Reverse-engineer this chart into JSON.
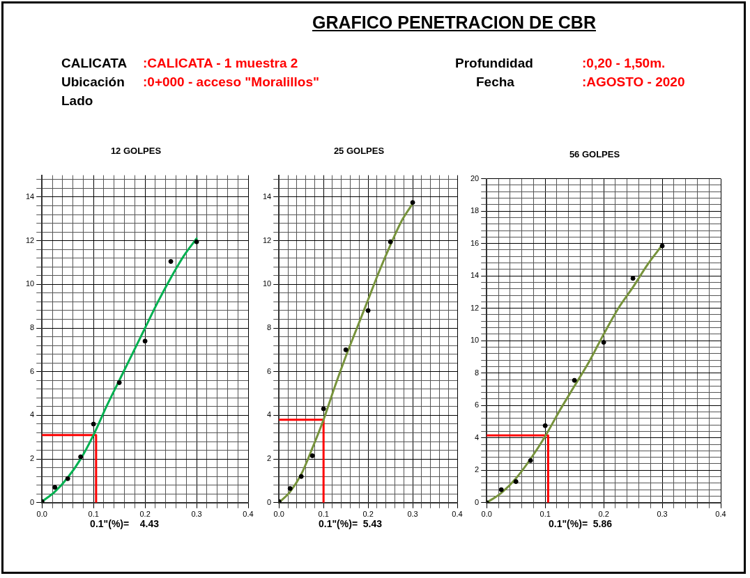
{
  "chart_data": [
    {
      "type": "other",
      "title": "GRAFICO PENETRACION DE CBR",
      "annotations": [
        "CALICATA",
        ":CALICATA - 1 muestra 2",
        "Ubicación",
        ":0+000 - acceso \"Moralillos\"",
        "Lado",
        "Profundidad",
        ":0,20 - 1,50m.",
        "Fecha",
        ":AGOSTO - 2020"
      ]
    },
    {
      "type": "scatter",
      "title": "12 GOLPES",
      "grid": true,
      "xlim": [
        0,
        0.4
      ],
      "ylim": [
        0,
        15
      ],
      "xticks": [
        {
          "value": 0,
          "label": "0.0"
        },
        {
          "value": 0.02,
          "label": null
        },
        {
          "value": 0.04,
          "label": null
        },
        {
          "value": 0.06,
          "label": null
        },
        {
          "value": 0.08,
          "label": null
        },
        0.1,
        {
          "value": 0.12,
          "label": null
        },
        {
          "value": 0.14,
          "label": null
        },
        {
          "value": 0.16,
          "label": null
        },
        {
          "value": 0.18,
          "label": null
        },
        0.2,
        {
          "value": 0.22,
          "label": null
        },
        {
          "value": 0.24,
          "label": null
        },
        {
          "value": 0.26,
          "label": null
        },
        {
          "value": 0.28,
          "label": null
        },
        0.3,
        {
          "value": 0.32,
          "label": null
        },
        {
          "value": 0.34,
          "label": null
        },
        {
          "value": 0.36,
          "label": null
        },
        {
          "value": 0.38,
          "label": null
        },
        0.4
      ],
      "yticks": [
        0,
        {
          "value": 0.4,
          "label": null
        },
        {
          "value": 0.8,
          "label": null
        },
        {
          "value": 1.2,
          "label": null
        },
        {
          "value": 1.6,
          "label": null
        },
        2,
        {
          "value": 2.4,
          "label": null
        },
        {
          "value": 2.8,
          "label": null
        },
        {
          "value": 3.2,
          "label": null
        },
        {
          "value": 3.6,
          "label": null
        },
        4,
        {
          "value": 4.4,
          "label": null
        },
        {
          "value": 4.8,
          "label": null
        },
        {
          "value": 5.2,
          "label": null
        },
        {
          "value": 5.6,
          "label": null
        },
        6,
        {
          "value": 6.4,
          "label": null
        },
        {
          "value": 6.8,
          "label": null
        },
        {
          "value": 7.2,
          "label": null
        },
        {
          "value": 7.6,
          "label": null
        },
        8,
        {
          "value": 8.4,
          "label": null
        },
        {
          "value": 8.8,
          "label": null
        },
        {
          "value": 9.2,
          "label": null
        },
        {
          "value": 9.6,
          "label": null
        },
        10,
        {
          "value": 10.4,
          "label": null
        },
        {
          "value": 10.8,
          "label": null
        },
        {
          "value": 11.2,
          "label": null
        },
        {
          "value": 11.6,
          "label": null
        },
        12,
        {
          "value": 12.4,
          "label": null
        },
        {
          "value": 12.8,
          "label": null
        },
        {
          "value": 13.2,
          "label": null
        },
        {
          "value": 13.6,
          "label": null
        },
        14,
        {
          "value": 14.4,
          "label": null
        },
        {
          "value": 14.8,
          "label": null
        }
      ],
      "series": [
        {
          "type": "scatter",
          "marker": "circle",
          "color": "#000000",
          "x": [
            0,
            0.025,
            0.05,
            0.075,
            0.1,
            0.15,
            0.2,
            0.25,
            0.3
          ],
          "values": [
            0.05,
            0.7,
            1.1,
            2.1,
            3.6,
            5.5,
            7.4,
            11.05,
            11.95
          ]
        },
        {
          "type": "line",
          "color": "#00b050",
          "x": [
            0,
            0.025,
            0.05,
            0.075,
            0.1,
            0.125,
            0.15,
            0.175,
            0.2,
            0.225,
            0.25,
            0.275,
            0.3
          ],
          "values": [
            0.05,
            0.5,
            1.15,
            2.0,
            3.1,
            4.4,
            5.6,
            6.8,
            8.0,
            9.2,
            10.3,
            11.3,
            12.1
          ]
        },
        {
          "type": "line",
          "color": "#ff0000",
          "x": [
            0,
            0.105,
            0.105
          ],
          "values": [
            3.1,
            3.1,
            0
          ]
        }
      ],
      "annotations": [
        "0.1\"(%)=    4.43"
      ]
    },
    {
      "type": "scatter",
      "title": "25 GOLPES",
      "grid": true,
      "xlim": [
        0,
        0.4
      ],
      "ylim": [
        0,
        15
      ],
      "xticks": [
        {
          "value": 0,
          "label": "0.0"
        },
        {
          "value": 0.02,
          "label": null
        },
        {
          "value": 0.04,
          "label": null
        },
        {
          "value": 0.06,
          "label": null
        },
        {
          "value": 0.08,
          "label": null
        },
        0.1,
        {
          "value": 0.12,
          "label": null
        },
        {
          "value": 0.14,
          "label": null
        },
        {
          "value": 0.16,
          "label": null
        },
        {
          "value": 0.18,
          "label": null
        },
        0.2,
        {
          "value": 0.22,
          "label": null
        },
        {
          "value": 0.24,
          "label": null
        },
        {
          "value": 0.26,
          "label": null
        },
        {
          "value": 0.28,
          "label": null
        },
        0.3,
        {
          "value": 0.32,
          "label": null
        },
        {
          "value": 0.34,
          "label": null
        },
        {
          "value": 0.36,
          "label": null
        },
        {
          "value": 0.38,
          "label": null
        },
        0.4
      ],
      "yticks": [
        0,
        {
          "value": 0.4,
          "label": null
        },
        {
          "value": 0.8,
          "label": null
        },
        {
          "value": 1.2,
          "label": null
        },
        {
          "value": 1.6,
          "label": null
        },
        2,
        {
          "value": 2.4,
          "label": null
        },
        {
          "value": 2.8,
          "label": null
        },
        {
          "value": 3.2,
          "label": null
        },
        {
          "value": 3.6,
          "label": null
        },
        4,
        {
          "value": 4.4,
          "label": null
        },
        {
          "value": 4.8,
          "label": null
        },
        {
          "value": 5.2,
          "label": null
        },
        {
          "value": 5.6,
          "label": null
        },
        6,
        {
          "value": 6.4,
          "label": null
        },
        {
          "value": 6.8,
          "label": null
        },
        {
          "value": 7.2,
          "label": null
        },
        {
          "value": 7.6,
          "label": null
        },
        8,
        {
          "value": 8.4,
          "label": null
        },
        {
          "value": 8.8,
          "label": null
        },
        {
          "value": 9.2,
          "label": null
        },
        {
          "value": 9.6,
          "label": null
        },
        10,
        {
          "value": 10.4,
          "label": null
        },
        {
          "value": 10.8,
          "label": null
        },
        {
          "value": 11.2,
          "label": null
        },
        {
          "value": 11.6,
          "label": null
        },
        12,
        {
          "value": 12.4,
          "label": null
        },
        {
          "value": 12.8,
          "label": null
        },
        {
          "value": 13.2,
          "label": null
        },
        {
          "value": 13.6,
          "label": null
        },
        14,
        {
          "value": 14.4,
          "label": null
        },
        {
          "value": 14.8,
          "label": null
        }
      ],
      "series": [
        {
          "type": "scatter",
          "marker": "circle",
          "color": "#000000",
          "x": [
            0,
            0.025,
            0.05,
            0.075,
            0.1,
            0.15,
            0.2,
            0.25,
            0.3
          ],
          "values": [
            0.05,
            0.65,
            1.2,
            2.15,
            4.3,
            7.0,
            8.8,
            11.95,
            13.75
          ]
        },
        {
          "type": "line",
          "color": "#77933c",
          "x": [
            0,
            0.025,
            0.05,
            0.075,
            0.1,
            0.125,
            0.15,
            0.175,
            0.2,
            0.225,
            0.25,
            0.275,
            0.3
          ],
          "values": [
            0,
            0.5,
            1.3,
            2.5,
            3.8,
            5.3,
            6.7,
            8.0,
            9.3,
            10.6,
            11.8,
            12.9,
            13.7
          ]
        },
        {
          "type": "line",
          "color": "#ff0000",
          "x": [
            0,
            0.1,
            0.1
          ],
          "values": [
            3.8,
            3.8,
            0
          ]
        }
      ],
      "annotations": [
        "0.1\"(%)=  5.43"
      ]
    },
    {
      "type": "scatter",
      "title": "56 GOLPES",
      "grid": true,
      "xlim": [
        0,
        0.4
      ],
      "ylim": [
        0,
        20
      ],
      "xticks": [
        {
          "value": 0,
          "label": "0.0"
        },
        {
          "value": 0.02,
          "label": null
        },
        {
          "value": 0.04,
          "label": null
        },
        {
          "value": 0.06,
          "label": null
        },
        {
          "value": 0.08,
          "label": null
        },
        0.1,
        {
          "value": 0.12,
          "label": null
        },
        {
          "value": 0.14,
          "label": null
        },
        {
          "value": 0.16,
          "label": null
        },
        {
          "value": 0.18,
          "label": null
        },
        0.2,
        {
          "value": 0.22,
          "label": null
        },
        {
          "value": 0.24,
          "label": null
        },
        {
          "value": 0.26,
          "label": null
        },
        {
          "value": 0.28,
          "label": null
        },
        0.3,
        {
          "value": 0.32,
          "label": null
        },
        {
          "value": 0.34,
          "label": null
        },
        {
          "value": 0.36,
          "label": null
        },
        {
          "value": 0.38,
          "label": null
        },
        0.4
      ],
      "yticks": [
        0,
        {
          "value": 0.4,
          "label": null
        },
        {
          "value": 0.8,
          "label": null
        },
        {
          "value": 1.2,
          "label": null
        },
        {
          "value": 1.6,
          "label": null
        },
        2,
        {
          "value": 2.4,
          "label": null
        },
        {
          "value": 2.8,
          "label": null
        },
        {
          "value": 3.2,
          "label": null
        },
        {
          "value": 3.6,
          "label": null
        },
        4,
        {
          "value": 4.4,
          "label": null
        },
        {
          "value": 4.8,
          "label": null
        },
        {
          "value": 5.2,
          "label": null
        },
        {
          "value": 5.6,
          "label": null
        },
        6,
        {
          "value": 6.4,
          "label": null
        },
        {
          "value": 6.8,
          "label": null
        },
        {
          "value": 7.2,
          "label": null
        },
        {
          "value": 7.6,
          "label": null
        },
        8,
        {
          "value": 8.4,
          "label": null
        },
        {
          "value": 8.8,
          "label": null
        },
        {
          "value": 9.2,
          "label": null
        },
        {
          "value": 9.6,
          "label": null
        },
        10,
        {
          "value": 10.4,
          "label": null
        },
        {
          "value": 10.8,
          "label": null
        },
        {
          "value": 11.2,
          "label": null
        },
        {
          "value": 11.6,
          "label": null
        },
        12,
        {
          "value": 12.4,
          "label": null
        },
        {
          "value": 12.8,
          "label": null
        },
        {
          "value": 13.2,
          "label": null
        },
        {
          "value": 13.6,
          "label": null
        },
        14,
        {
          "value": 14.4,
          "label": null
        },
        {
          "value": 14.8,
          "label": null
        },
        {
          "value": 15.2,
          "label": null
        },
        {
          "value": 15.6,
          "label": null
        },
        16,
        {
          "value": 16.4,
          "label": null
        },
        {
          "value": 16.8,
          "label": null
        },
        {
          "value": 17.2,
          "label": null
        },
        {
          "value": 17.6,
          "label": null
        },
        18,
        {
          "value": 18.4,
          "label": null
        },
        {
          "value": 18.8,
          "label": null
        },
        {
          "value": 19.2,
          "label": null
        },
        {
          "value": 19.6,
          "label": null
        },
        20
      ],
      "series": [
        {
          "type": "scatter",
          "marker": "circle",
          "color": "#000000",
          "x": [
            0,
            0.025,
            0.05,
            0.075,
            0.1,
            0.15,
            0.2,
            0.25,
            0.3
          ],
          "values": [
            0,
            0.8,
            1.3,
            2.6,
            4.75,
            7.55,
            9.9,
            13.85,
            15.85
          ]
        },
        {
          "type": "line",
          "color": "#77933c",
          "x": [
            0,
            0.025,
            0.05,
            0.075,
            0.1,
            0.125,
            0.15,
            0.175,
            0.2,
            0.225,
            0.25,
            0.275,
            0.3
          ],
          "values": [
            0,
            0.6,
            1.5,
            2.7,
            4.1,
            5.7,
            7.2,
            8.7,
            10.4,
            12.0,
            13.3,
            14.7,
            15.9
          ]
        },
        {
          "type": "line",
          "color": "#ff0000",
          "x": [
            0,
            0.105,
            0.105
          ],
          "values": [
            4.15,
            4.15,
            0
          ]
        }
      ],
      "annotations": [
        "0.1\"(%)=  5.86"
      ]
    }
  ]
}
